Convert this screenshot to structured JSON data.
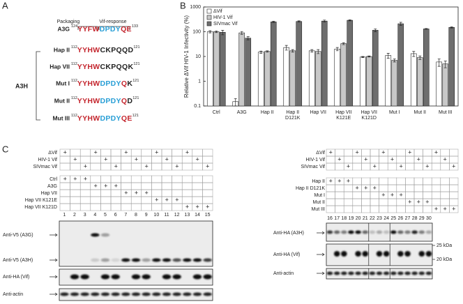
{
  "panel_a": {
    "label": "A",
    "bracket_labels": [
      "Packaging",
      "Vif-response"
    ],
    "group_label": "A3H",
    "rows": [
      {
        "name": "A3G",
        "start": 124,
        "end": 133,
        "segments": [
          {
            "text": "YYFW",
            "color": "#c4262e"
          },
          {
            "text": "DPDY",
            "color": "#2a9fd6"
          },
          {
            "text": "QE",
            "color": "#c4262e"
          }
        ]
      },
      {
        "name": "Hap II",
        "start": 112,
        "end": 121,
        "segments": [
          {
            "text": "YYHW",
            "color": "#c4262e"
          },
          {
            "text": "CKPQQD",
            "color": "#222222"
          }
        ]
      },
      {
        "name": "Hap VII",
        "start": 112,
        "end": 121,
        "segments": [
          {
            "text": "YYHW",
            "color": "#c4262e"
          },
          {
            "text": "CKPQQK",
            "color": "#222222"
          }
        ]
      },
      {
        "name": "Mut I",
        "start": 112,
        "end": 121,
        "segments": [
          {
            "text": "YYHW",
            "color": "#c4262e"
          },
          {
            "text": "DPDY",
            "color": "#2a9fd6"
          },
          {
            "text": "Q",
            "color": "#c4262e"
          },
          {
            "text": "K",
            "color": "#222222"
          }
        ]
      },
      {
        "name": "Mut II",
        "start": 112,
        "end": 121,
        "segments": [
          {
            "text": "YYHW",
            "color": "#c4262e"
          },
          {
            "text": "DPDY",
            "color": "#2a9fd6"
          },
          {
            "text": "Q",
            "color": "#c4262e"
          },
          {
            "text": "D",
            "color": "#222222"
          }
        ]
      },
      {
        "name": "Mut III",
        "start": 112,
        "end": 121,
        "segments": [
          {
            "text": "YYHW",
            "color": "#c4262e"
          },
          {
            "text": "DPDY",
            "color": "#2a9fd6"
          },
          {
            "text": "QE",
            "color": "#c4262e"
          }
        ]
      }
    ]
  },
  "chart_data": {
    "type": "bar",
    "panel_label": "B",
    "ylabel": "Relative ΔVif HIV-1 Infectivity (%)",
    "log_scale": true,
    "grid": false,
    "legend": "upper left",
    "categories": [
      "Ctrl",
      "A3G",
      "Hap II",
      "Hap II D121K",
      "Hap VII",
      "Hap VII K121E",
      "Hap VII K121D",
      "Mut I",
      "Mut II",
      "Mut III"
    ],
    "series": [
      {
        "name": "ΔVif",
        "color": "#ffffff",
        "values": [
          100,
          0.15,
          15,
          23,
          17,
          20,
          9.5,
          11,
          13,
          6
        ],
        "errors": [
          10,
          0.05,
          1.5,
          5,
          2,
          3,
          0.5,
          2.5,
          3,
          2
        ]
      },
      {
        "name": "HIV-1 Vif",
        "color": "#c8c8c8",
        "values": [
          100,
          90,
          16,
          17,
          16,
          33,
          10,
          7,
          9,
          5
        ],
        "errors": [
          8,
          12,
          1,
          2,
          3,
          3,
          0.5,
          1,
          1.5,
          1.5
        ]
      },
      {
        "name": "SIVmac Vif",
        "color": "#6e6e6e",
        "values": [
          95,
          55,
          250,
          260,
          270,
          290,
          115,
          210,
          130,
          150
        ],
        "errors": [
          20,
          8,
          15,
          15,
          25,
          15,
          15,
          30,
          5,
          8
        ]
      }
    ],
    "ylim": [
      0.1,
      1000
    ],
    "yticks": [
      0.1,
      1,
      10,
      100,
      1000
    ]
  },
  "panel_c": {
    "label": "C",
    "mark": "+",
    "vif_rows": [
      "ΔVif",
      "HIV-1 Vif",
      "SIVmac Vif"
    ],
    "left": {
      "vif_lanes": [
        [
          1,
          4,
          7,
          10,
          13
        ],
        [
          2,
          5,
          8,
          11,
          14
        ],
        [
          3,
          6,
          9,
          12,
          15
        ]
      ],
      "constructs": [
        {
          "name": "Ctrl",
          "lanes": [
            1,
            2,
            3
          ]
        },
        {
          "name": "A3G",
          "lanes": [
            4,
            5,
            6
          ]
        },
        {
          "name": "Hap VII",
          "lanes": [
            7,
            8,
            9
          ]
        },
        {
          "name": "Hap VII K121E",
          "lanes": [
            10,
            11,
            12
          ]
        },
        {
          "name": "Hap VII K121D",
          "lanes": [
            13,
            14,
            15
          ]
        }
      ],
      "lanes": [
        1,
        2,
        3,
        4,
        5,
        6,
        7,
        8,
        9,
        10,
        11,
        12,
        13,
        14,
        15
      ],
      "blots": [
        [
          "Anti-V5 (A3G)",
          "Anti-V5 (A3H)"
        ],
        [
          "Anti-HA (Vif)"
        ],
        [
          "Anti-actin"
        ]
      ]
    },
    "right": {
      "vif_lanes": [
        [
          16,
          19,
          22,
          25,
          28
        ],
        [
          17,
          20,
          23,
          26,
          29
        ],
        [
          18,
          21,
          24,
          27,
          30
        ]
      ],
      "constructs": [
        {
          "name": "Hap II",
          "lanes": [
            16,
            17,
            18
          ]
        },
        {
          "name": "Hap II D121K",
          "lanes": [
            19,
            20,
            21
          ]
        },
        {
          "name": "Mut I",
          "lanes": [
            22,
            23,
            24
          ]
        },
        {
          "name": "Mut II",
          "lanes": [
            25,
            26,
            27
          ]
        },
        {
          "name": "Mut III",
          "lanes": [
            28,
            29,
            30
          ]
        }
      ],
      "lanes": [
        16,
        17,
        18,
        19,
        20,
        21,
        22,
        23,
        24,
        25,
        26,
        27,
        28,
        29,
        30
      ],
      "blots": [
        [
          "Anti-HA (A3H)"
        ],
        [
          "Anti-HA (Vif)"
        ],
        [
          "Anti-actin"
        ]
      ],
      "markers": [
        "25 kDa",
        "20 kDa"
      ]
    }
  }
}
